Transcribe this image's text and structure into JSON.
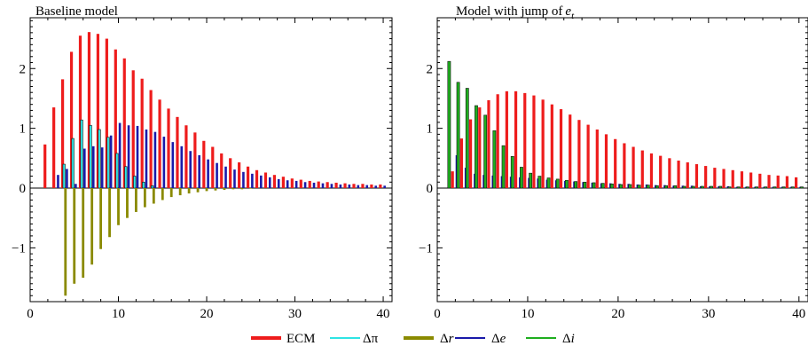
{
  "legend": {
    "placement": "bottom-center",
    "items": [
      {
        "key": "ecm",
        "label": "ECM",
        "color": "#ee1c1c"
      },
      {
        "key": "dpi",
        "label": "Δπ",
        "color": "#2fe4e4"
      },
      {
        "key": "dr",
        "label": "Δr",
        "color": "#8a8a00"
      },
      {
        "key": "de",
        "label": "Δe",
        "color": "#1a1aaa"
      },
      {
        "key": "di",
        "label": "Δi",
        "color": "#1fae1f"
      }
    ]
  },
  "chart_data": [
    {
      "type": "bar",
      "title": "Baseline model",
      "xlim": [
        0,
        41
      ],
      "ylim": [
        -1.9,
        2.85
      ],
      "xticks": [
        0,
        10,
        20,
        30,
        40
      ],
      "yticks": [
        -1,
        0,
        1,
        2
      ],
      "ytick_labels": [
        "−1",
        "0",
        "1",
        "2"
      ],
      "grid": false,
      "x": [
        2,
        3,
        4,
        5,
        6,
        7,
        8,
        9,
        10,
        11,
        12,
        13,
        14,
        15,
        16,
        17,
        18,
        19,
        20,
        21,
        22,
        23,
        24,
        25,
        26,
        27,
        28,
        29,
        30,
        31,
        32,
        33,
        34,
        35,
        36,
        37,
        38,
        39,
        40
      ],
      "series": [
        {
          "key": "ecm",
          "values": [
            0.73,
            1.35,
            1.82,
            2.28,
            2.55,
            2.61,
            2.58,
            2.5,
            2.32,
            2.17,
            1.97,
            1.83,
            1.64,
            1.48,
            1.33,
            1.19,
            1.05,
            0.93,
            0.79,
            0.69,
            0.58,
            0.5,
            0.43,
            0.36,
            0.3,
            0.26,
            0.22,
            0.19,
            0.16,
            0.14,
            0.12,
            0.11,
            0.1,
            0.09,
            0.08,
            0.07,
            0.07,
            0.06,
            0.06
          ]
        },
        {
          "key": "dpi",
          "values": [
            0,
            0,
            0.4,
            0.83,
            1.14,
            1.05,
            0.98,
            0.85,
            0.58,
            0.36,
            0.2,
            0.1,
            0.04,
            0,
            0,
            0,
            0,
            0,
            0,
            0,
            0,
            0,
            0,
            0,
            0,
            0,
            0,
            0,
            0,
            0,
            0,
            0,
            0,
            0,
            0,
            0,
            0,
            0,
            0
          ]
        },
        {
          "key": "dr",
          "values": [
            0,
            0,
            -1.8,
            -1.6,
            -1.5,
            -1.28,
            -1.02,
            -0.82,
            -0.62,
            -0.5,
            -0.4,
            -0.32,
            -0.26,
            -0.2,
            -0.15,
            -0.12,
            -0.09,
            -0.07,
            -0.05,
            -0.04,
            -0.03,
            -0.02,
            -0.02,
            -0.01,
            0,
            0,
            0,
            0,
            0,
            0,
            0,
            0,
            0,
            0,
            0,
            0,
            0,
            0,
            0
          ]
        },
        {
          "key": "de",
          "values": [
            0,
            0.22,
            0.32,
            0.07,
            0.66,
            0.7,
            0.68,
            0.88,
            1.09,
            1.05,
            1.04,
            0.98,
            0.94,
            0.86,
            0.77,
            0.7,
            0.62,
            0.55,
            0.48,
            0.42,
            0.36,
            0.31,
            0.27,
            0.24,
            0.21,
            0.18,
            0.15,
            0.13,
            0.12,
            0.1,
            0.09,
            0.08,
            0.07,
            0.06,
            0.06,
            0.05,
            0.05,
            0.04,
            0.04
          ]
        },
        {
          "key": "di",
          "values": [
            0,
            0,
            0,
            0,
            0,
            0,
            0,
            0,
            0,
            0,
            0,
            0,
            0,
            0,
            0,
            0,
            0,
            0,
            0,
            0,
            0,
            0,
            0,
            0,
            0,
            0,
            0,
            0,
            0,
            0,
            0,
            0,
            0,
            0,
            0,
            0,
            0,
            0,
            0
          ]
        }
      ]
    },
    {
      "type": "bar",
      "title": "Model with jump of e",
      "title_subscript": "t",
      "xlim": [
        0,
        41
      ],
      "ylim": [
        -1.9,
        2.85
      ],
      "xticks": [
        0,
        10,
        20,
        30,
        40
      ],
      "yticks": [
        -1,
        0,
        1,
        2
      ],
      "ytick_labels": [
        "−1",
        "0",
        "1",
        "2"
      ],
      "grid": false,
      "x": [
        1,
        2,
        3,
        4,
        5,
        6,
        7,
        8,
        9,
        10,
        11,
        12,
        13,
        14,
        15,
        16,
        17,
        18,
        19,
        20,
        21,
        22,
        23,
        24,
        25,
        26,
        27,
        28,
        29,
        30,
        31,
        32,
        33,
        34,
        35,
        36,
        37,
        38,
        39,
        40
      ],
      "series": [
        {
          "key": "ecm",
          "values": [
            0,
            0.28,
            0.83,
            1.15,
            1.35,
            1.47,
            1.57,
            1.62,
            1.62,
            1.59,
            1.55,
            1.48,
            1.4,
            1.32,
            1.23,
            1.14,
            1.06,
            0.98,
            0.9,
            0.82,
            0.75,
            0.69,
            0.63,
            0.58,
            0.54,
            0.5,
            0.46,
            0.43,
            0.4,
            0.37,
            0.34,
            0.32,
            0.3,
            0.28,
            0.26,
            0.24,
            0.22,
            0.21,
            0.2,
            0.18
          ]
        },
        {
          "key": "dpi",
          "values": [
            0,
            0,
            0,
            0,
            0,
            0,
            0,
            0,
            0,
            0,
            0,
            0,
            0,
            0,
            0,
            0,
            0,
            0,
            0,
            0,
            0,
            0,
            0,
            0,
            0,
            0,
            0,
            0,
            0,
            0,
            0,
            0,
            0,
            0,
            0,
            0,
            0,
            0,
            0,
            0
          ]
        },
        {
          "key": "dr",
          "values": [
            0,
            0,
            0,
            0,
            0,
            0,
            0,
            0,
            0,
            0,
            0,
            0,
            0,
            0,
            0,
            0,
            0,
            0,
            0,
            0,
            0,
            0,
            0,
            0,
            0,
            0,
            0,
            0,
            0,
            0,
            0,
            0,
            0,
            0,
            0,
            0,
            0,
            0,
            0,
            0
          ]
        },
        {
          "key": "de",
          "values": [
            0,
            0.55,
            0.34,
            0.24,
            0.22,
            0.21,
            0.2,
            0.19,
            0.18,
            0.17,
            0.16,
            0.14,
            0.13,
            0.12,
            0.11,
            0.1,
            0.09,
            0.08,
            0.08,
            0.07,
            0.07,
            0.06,
            0.06,
            0.05,
            0.05,
            0.04,
            0.04,
            0.04,
            0.03,
            0.03,
            0.03,
            0.03,
            0.02,
            0.02,
            0.02,
            0.02,
            0.02,
            0.02,
            0.02,
            0.02
          ]
        },
        {
          "key": "di",
          "values": [
            2.12,
            1.77,
            1.67,
            1.38,
            1.22,
            0.96,
            0.71,
            0.53,
            0.35,
            0.25,
            0.2,
            0.17,
            0.15,
            0.13,
            0.11,
            0.1,
            0.09,
            0.08,
            0.07,
            0.06,
            0.06,
            0.05,
            0.05,
            0.04,
            0.04,
            0.04,
            0.03,
            0.03,
            0.03,
            0.03,
            0.03,
            0.02,
            0.02,
            0.02,
            0.02,
            0.02,
            0.02,
            0.02,
            0.02,
            0.02
          ]
        }
      ]
    }
  ]
}
